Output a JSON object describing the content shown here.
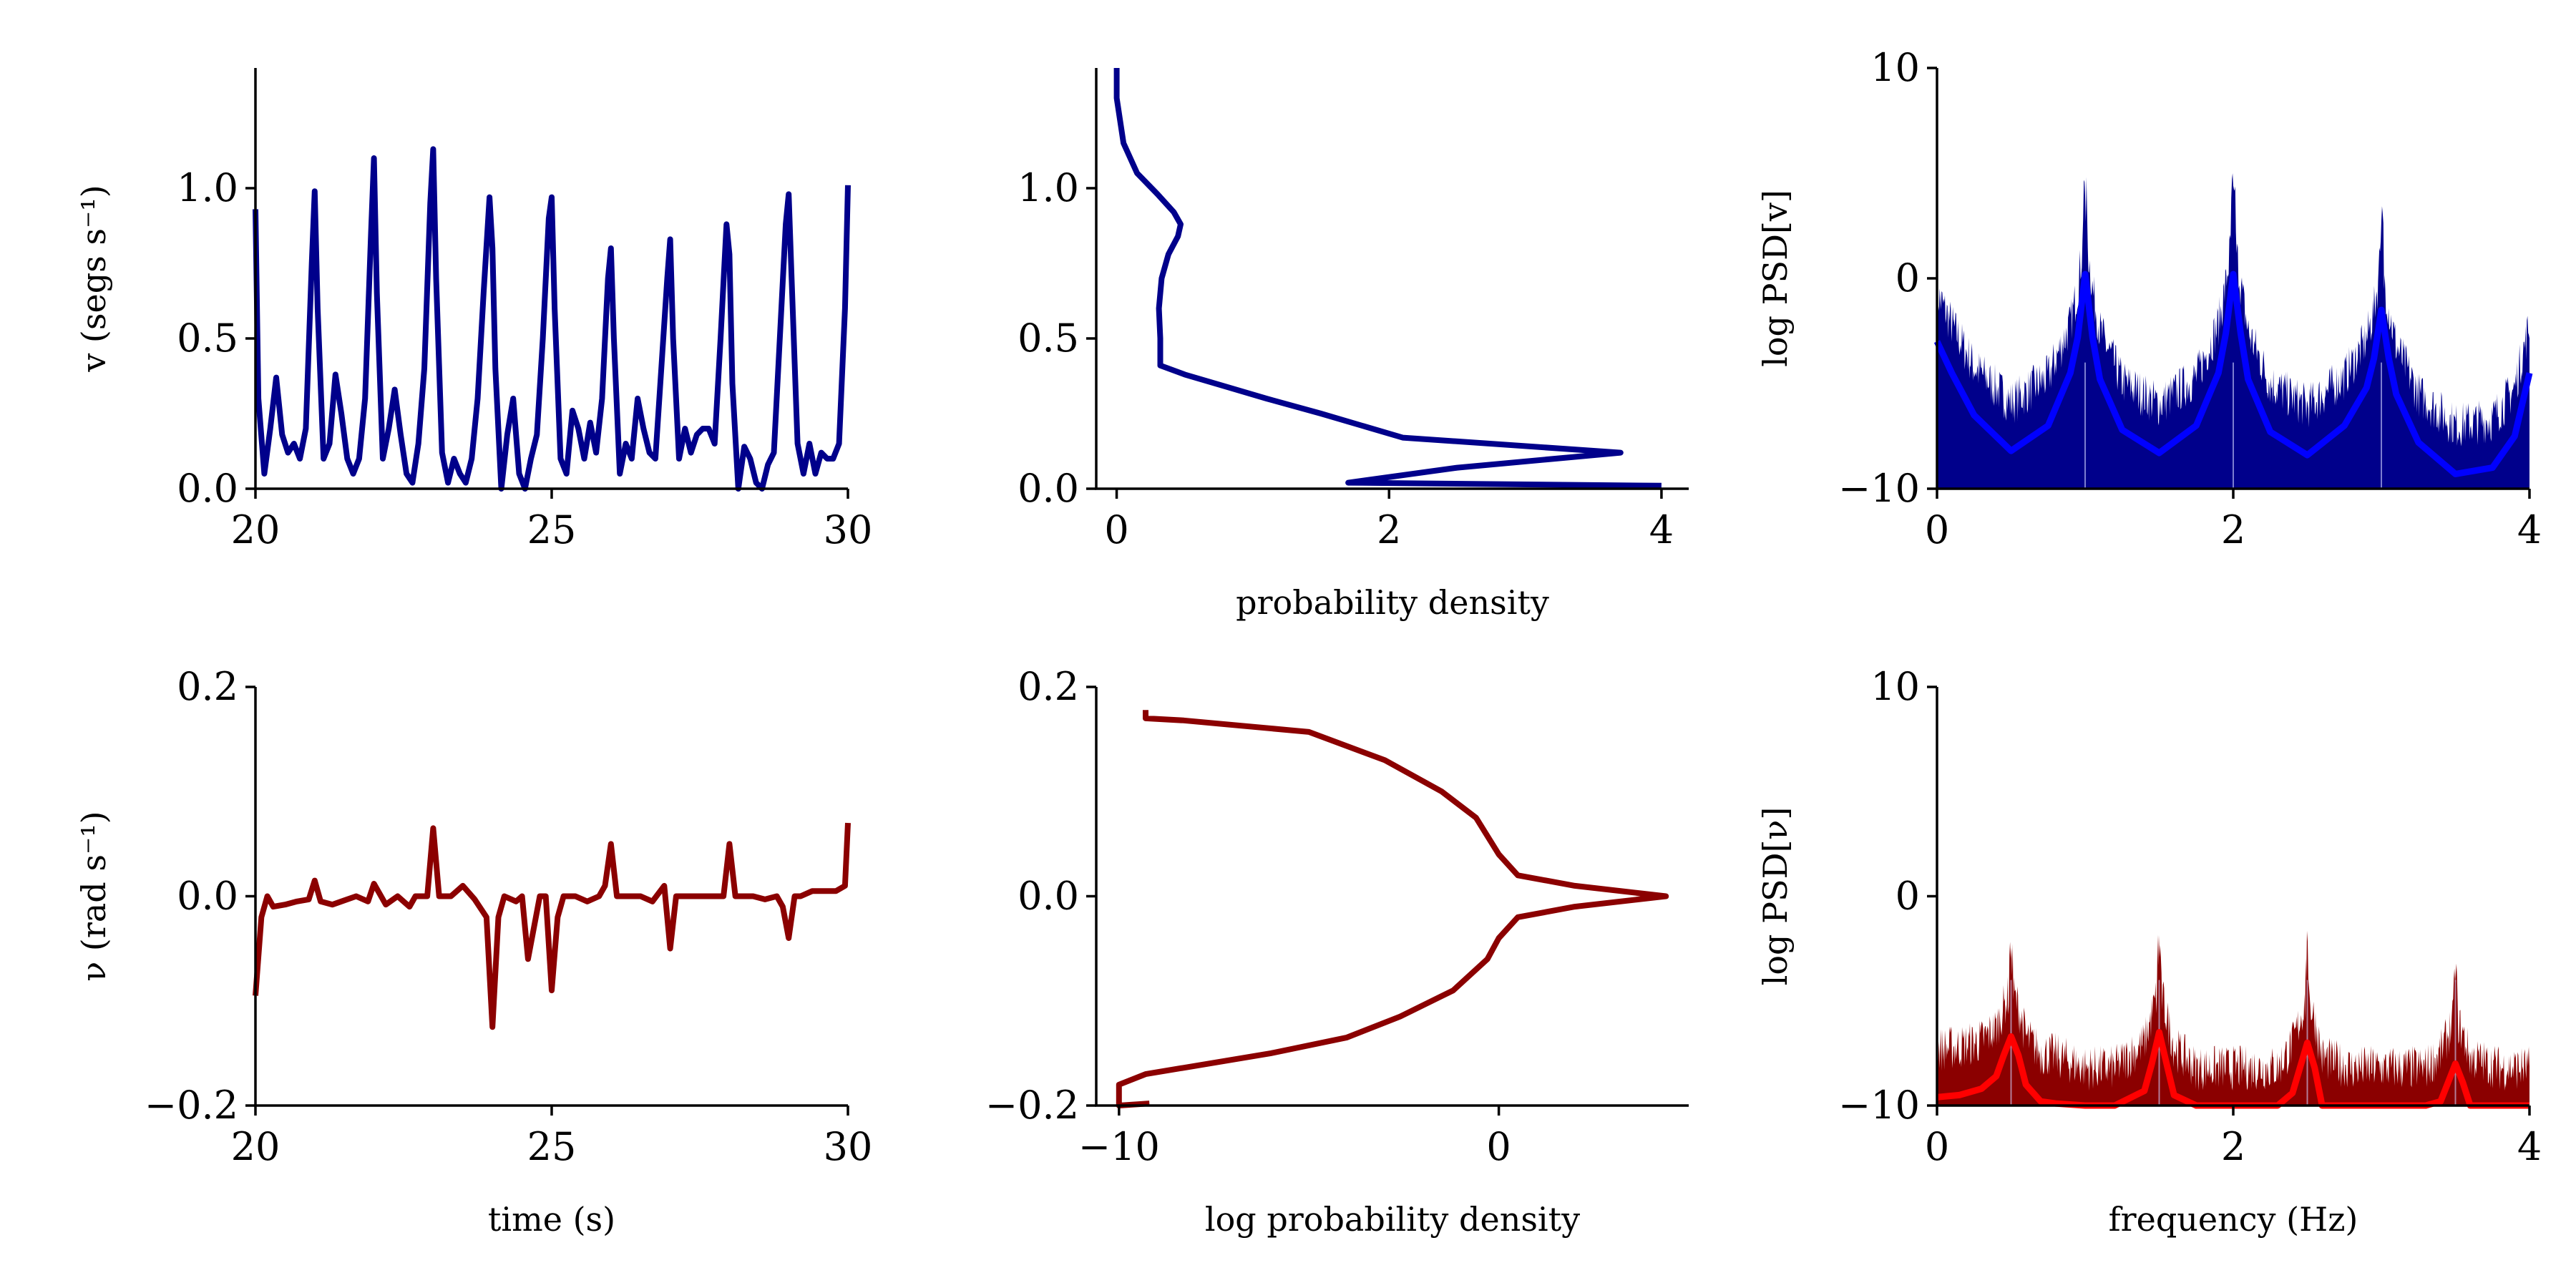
{
  "chart_data": [
    {
      "type": "line",
      "panel": "speed-time",
      "ylabel": "v (segs s⁻¹)",
      "xlabel": "",
      "xlim": [
        20,
        30
      ],
      "ylim": [
        0,
        1.4
      ],
      "xticks": [
        "20",
        "25",
        "30"
      ],
      "yticks": [
        "0.0",
        "0.5",
        "1.0"
      ],
      "color": "#00008b",
      "series": [
        {
          "x": [
            20.0,
            20.05,
            20.15,
            20.25,
            20.35,
            20.45,
            20.55,
            20.65,
            20.75,
            20.85,
            20.95,
            21.0,
            21.05,
            21.15,
            21.25,
            21.35,
            21.45,
            21.55,
            21.65,
            21.75,
            21.85,
            21.95,
            22.0,
            22.05,
            22.15,
            22.25,
            22.35,
            22.45,
            22.55,
            22.65,
            22.75,
            22.85,
            22.95,
            23.0,
            23.05,
            23.15,
            23.25,
            23.35,
            23.45,
            23.55,
            23.65,
            23.75,
            23.85,
            23.95,
            24.0,
            24.05,
            24.15,
            24.25,
            24.35,
            24.45,
            24.55,
            24.65,
            24.75,
            24.85,
            24.95,
            25.0,
            25.05,
            25.15,
            25.25,
            25.35,
            25.45,
            25.55,
            25.65,
            25.75,
            25.85,
            25.95,
            26.0,
            26.05,
            26.15,
            26.25,
            26.35,
            26.45,
            26.55,
            26.65,
            26.75,
            26.85,
            26.95,
            27.0,
            27.05,
            27.15,
            27.25,
            27.35,
            27.45,
            27.55,
            27.65,
            27.75,
            27.85,
            27.95,
            28.0,
            28.05,
            28.15,
            28.25,
            28.35,
            28.45,
            28.55,
            28.65,
            28.75,
            28.85,
            28.95,
            29.0,
            29.05,
            29.15,
            29.25,
            29.35,
            29.45,
            29.55,
            29.65,
            29.75,
            29.85,
            29.95,
            30.0
          ],
          "y": [
            0.93,
            0.3,
            0.05,
            0.2,
            0.37,
            0.18,
            0.12,
            0.15,
            0.1,
            0.2,
            0.75,
            0.99,
            0.6,
            0.1,
            0.15,
            0.38,
            0.25,
            0.1,
            0.05,
            0.1,
            0.3,
            0.85,
            1.1,
            0.65,
            0.1,
            0.2,
            0.33,
            0.18,
            0.05,
            0.02,
            0.15,
            0.4,
            0.95,
            1.13,
            0.7,
            0.12,
            0.02,
            0.1,
            0.05,
            0.02,
            0.1,
            0.3,
            0.65,
            0.97,
            0.8,
            0.4,
            0.0,
            0.18,
            0.3,
            0.05,
            0.0,
            0.1,
            0.18,
            0.5,
            0.9,
            0.97,
            0.6,
            0.1,
            0.05,
            0.26,
            0.2,
            0.1,
            0.22,
            0.12,
            0.3,
            0.7,
            0.8,
            0.5,
            0.05,
            0.15,
            0.1,
            0.3,
            0.2,
            0.12,
            0.1,
            0.4,
            0.7,
            0.83,
            0.5,
            0.1,
            0.2,
            0.12,
            0.18,
            0.2,
            0.2,
            0.15,
            0.5,
            0.88,
            0.78,
            0.35,
            0.0,
            0.14,
            0.1,
            0.02,
            0.0,
            0.08,
            0.12,
            0.5,
            0.88,
            0.98,
            0.7,
            0.15,
            0.05,
            0.15,
            0.05,
            0.12,
            0.1,
            0.1,
            0.15,
            0.6,
            1.01
          ]
        }
      ]
    },
    {
      "type": "line",
      "panel": "speed-density",
      "xlabel": "probability density",
      "ylabel": "",
      "xlim": [
        -0.15,
        4.2
      ],
      "ylim": [
        0,
        1.4
      ],
      "xticks": [
        "0",
        "2",
        "4"
      ],
      "yticks": [
        "0.0",
        "0.5",
        "1.0"
      ],
      "color": "#00008b",
      "series": [
        {
          "x": [
            4.0,
            1.7,
            2.5,
            3.7,
            2.1,
            1.5,
            1.1,
            0.8,
            0.5,
            0.32,
            0.32,
            0.31,
            0.33,
            0.38,
            0.45,
            0.47,
            0.42,
            0.3,
            0.15,
            0.05,
            0.0,
            0.0
          ],
          "y": [
            0.01,
            0.02,
            0.07,
            0.12,
            0.17,
            0.25,
            0.3,
            0.34,
            0.38,
            0.41,
            0.5,
            0.6,
            0.7,
            0.78,
            0.84,
            0.88,
            0.92,
            0.98,
            1.05,
            1.15,
            1.3,
            1.4
          ]
        }
      ]
    },
    {
      "type": "area",
      "panel": "speed-psd",
      "ylabel": "log PSD[v]",
      "xlabel": "",
      "xlim": [
        0,
        4
      ],
      "ylim": [
        -10,
        10
      ],
      "xticks": [
        "0",
        "2",
        "4"
      ],
      "yticks": [
        "−10",
        "0",
        "10"
      ],
      "fill_color": "#00008b",
      "line_color": "#0000ff",
      "peaks_hz": [
        1,
        2,
        3
      ],
      "series": [
        {
          "x": [
            0.0,
            0.1,
            0.25,
            0.5,
            0.75,
            0.9,
            0.95,
            1.0,
            1.05,
            1.1,
            1.25,
            1.5,
            1.75,
            1.9,
            1.95,
            2.0,
            2.05,
            2.1,
            2.25,
            2.5,
            2.75,
            2.9,
            2.95,
            3.0,
            3.05,
            3.1,
            3.25,
            3.5,
            3.75,
            3.9,
            4.0
          ],
          "y": [
            -3.0,
            -4.5,
            -6.5,
            -8.2,
            -7.0,
            -4.5,
            -2.8,
            0.2,
            -2.8,
            -4.8,
            -7.2,
            -8.3,
            -7.0,
            -4.5,
            -2.6,
            0.2,
            -2.6,
            -4.8,
            -7.3,
            -8.4,
            -7.0,
            -5.2,
            -3.8,
            -1.5,
            -3.8,
            -5.5,
            -7.8,
            -9.3,
            -9.0,
            -7.5,
            -4.5
          ]
        }
      ]
    },
    {
      "type": "line",
      "panel": "angular-time",
      "ylabel": "ν (rad s⁻¹)",
      "xlabel": "time (s)",
      "xlim": [
        20,
        30
      ],
      "ylim": [
        -0.2,
        0.2
      ],
      "xticks": [
        "20",
        "25",
        "30"
      ],
      "yticks": [
        "−0.2",
        "0.0",
        "0.2"
      ],
      "color": "#8b0000",
      "series": [
        {
          "x": [
            20.0,
            20.1,
            20.2,
            20.3,
            20.5,
            20.7,
            20.9,
            21.0,
            21.1,
            21.3,
            21.5,
            21.7,
            21.9,
            22.0,
            22.2,
            22.4,
            22.6,
            22.7,
            22.9,
            23.0,
            23.1,
            23.3,
            23.5,
            23.7,
            23.9,
            24.0,
            24.1,
            24.2,
            24.4,
            24.5,
            24.6,
            24.8,
            24.9,
            25.0,
            25.1,
            25.2,
            25.4,
            25.6,
            25.8,
            25.9,
            26.0,
            26.1,
            26.3,
            26.5,
            26.7,
            26.9,
            27.0,
            27.1,
            27.2,
            27.4,
            27.6,
            27.8,
            27.9,
            28.0,
            28.1,
            28.2,
            28.4,
            28.6,
            28.8,
            28.9,
            29.0,
            29.1,
            29.2,
            29.4,
            29.6,
            29.8,
            29.95,
            30.0
          ],
          "y": [
            -0.095,
            -0.02,
            0.0,
            -0.01,
            -0.008,
            -0.005,
            -0.003,
            0.015,
            -0.005,
            -0.008,
            -0.004,
            0.0,
            -0.005,
            0.012,
            -0.008,
            0.0,
            -0.01,
            0.0,
            0.0,
            0.065,
            0.0,
            0.0,
            0.01,
            -0.003,
            -0.02,
            -0.125,
            -0.02,
            0.0,
            -0.005,
            0.0,
            -0.06,
            0.0,
            0.0,
            -0.09,
            -0.02,
            0.0,
            0.0,
            -0.005,
            0.0,
            0.01,
            0.05,
            0.0,
            0.0,
            0.0,
            -0.005,
            0.01,
            -0.05,
            0.0,
            0.0,
            0.0,
            0.0,
            0.0,
            0.0,
            0.05,
            0.0,
            0.0,
            0.0,
            -0.003,
            0.0,
            -0.01,
            -0.04,
            0.0,
            0.0,
            0.005,
            0.005,
            0.005,
            0.01,
            0.07
          ]
        }
      ]
    },
    {
      "type": "line",
      "panel": "angular-density",
      "xlabel": "log probability density",
      "ylabel": "",
      "xlim": [
        -10.6,
        5
      ],
      "ylim": [
        -0.2,
        0.2
      ],
      "xticks": [
        "−10",
        "0"
      ],
      "yticks": [
        "−0.2",
        "0.0",
        "0.2"
      ],
      "color": "#8b0000",
      "series": [
        {
          "x": [
            -9.3,
            -9.3,
            -8.3,
            -5.0,
            -3.0,
            -1.5,
            -0.6,
            0.0,
            0.5,
            2.0,
            4.4,
            2.0,
            0.5,
            0.0,
            -0.3,
            -1.2,
            -2.6,
            -4.0,
            -6.0,
            -9.3,
            -10.0,
            -10.0,
            -9.2
          ],
          "y": [
            0.178,
            0.17,
            0.168,
            0.157,
            0.13,
            0.1,
            0.075,
            0.04,
            0.02,
            0.01,
            0.0,
            -0.01,
            -0.02,
            -0.04,
            -0.06,
            -0.09,
            -0.115,
            -0.135,
            -0.15,
            -0.17,
            -0.18,
            -0.2,
            -0.198
          ]
        }
      ]
    },
    {
      "type": "area",
      "panel": "angular-psd",
      "ylabel": "log PSD[ν]",
      "xlabel": "frequency (Hz)",
      "xlim": [
        0,
        4
      ],
      "ylim": [
        -10,
        10
      ],
      "xticks": [
        "0",
        "2",
        "4"
      ],
      "yticks": [
        "−10",
        "0",
        "10"
      ],
      "fill_color": "#8b0000",
      "line_color": "#ff0000",
      "peaks_hz": [
        0.5,
        1.5,
        2.5,
        3.5
      ],
      "series": [
        {
          "x": [
            0.0,
            0.15,
            0.3,
            0.4,
            0.45,
            0.5,
            0.55,
            0.6,
            0.7,
            0.8,
            1.0,
            1.2,
            1.4,
            1.45,
            1.5,
            1.55,
            1.6,
            1.75,
            2.0,
            2.3,
            2.4,
            2.45,
            2.5,
            2.55,
            2.6,
            2.8,
            3.0,
            3.3,
            3.4,
            3.45,
            3.5,
            3.55,
            3.6,
            3.8,
            4.0
          ],
          "y": [
            -9.6,
            -9.5,
            -9.2,
            -8.6,
            -7.6,
            -6.7,
            -7.6,
            -9.0,
            -9.8,
            -9.9,
            -10.5,
            -10.5,
            -9.3,
            -8.0,
            -6.5,
            -8.0,
            -9.5,
            -10.5,
            -10.5,
            -10.5,
            -9.4,
            -8.2,
            -7.0,
            -8.2,
            -10.0,
            -10.5,
            -10.5,
            -10.5,
            -9.8,
            -8.9,
            -8.0,
            -8.9,
            -10.0,
            -10.5,
            -10.5
          ]
        }
      ]
    }
  ]
}
